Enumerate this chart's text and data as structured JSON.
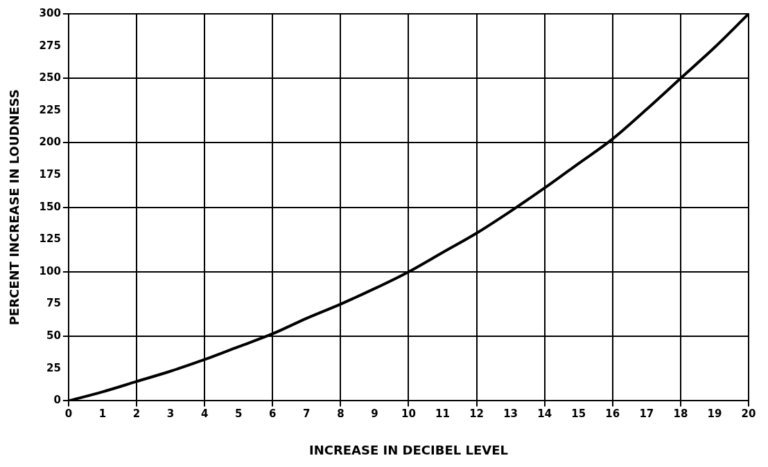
{
  "chart_data": {
    "type": "line",
    "xlabel": "INCREASE IN DECIBEL LEVEL",
    "ylabel": "PERCENT INCREASE IN LOUDNESS",
    "x": [
      0,
      1,
      2,
      3,
      4,
      5,
      6,
      7,
      8,
      9,
      10,
      11,
      12,
      13,
      14,
      15,
      16,
      17,
      18,
      19,
      20
    ],
    "series": [
      {
        "color": "#000000",
        "values": [
          0,
          7,
          15,
          23,
          32,
          42,
          52,
          64,
          75,
          87,
          100,
          115,
          130,
          147,
          165,
          184,
          203,
          226,
          250,
          274,
          300
        ]
      }
    ],
    "xlim": [
      0,
      20
    ],
    "xticks": [
      0,
      1,
      2,
      3,
      4,
      5,
      6,
      7,
      8,
      9,
      10,
      11,
      12,
      13,
      14,
      15,
      16,
      17,
      18,
      19,
      20
    ],
    "ylim": [
      0,
      300
    ],
    "yticks": [
      0,
      25,
      50,
      75,
      100,
      125,
      150,
      175,
      200,
      225,
      250,
      275,
      300
    ],
    "grid": true,
    "legend": false,
    "marker": "none",
    "line_style": "solid"
  }
}
